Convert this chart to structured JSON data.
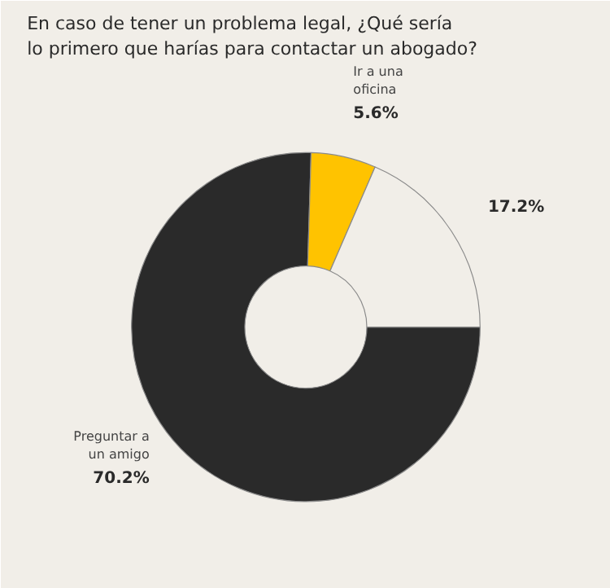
{
  "chart_data": {
    "type": "donut",
    "title": "En caso de tener un problema legal, ¿Qué sería lo primero que harías para contactar un abogado?",
    "categories": [
      "Preguntar a un amigo",
      "Ir a una oficina",
      null
    ],
    "values": [
      70.2,
      5.6,
      17.2
    ],
    "value_labels": [
      "70.2%",
      "5.6%",
      "17.2%"
    ],
    "colors": [
      "#2a2a2a",
      "#ffc300",
      "#f1eee8"
    ]
  }
}
